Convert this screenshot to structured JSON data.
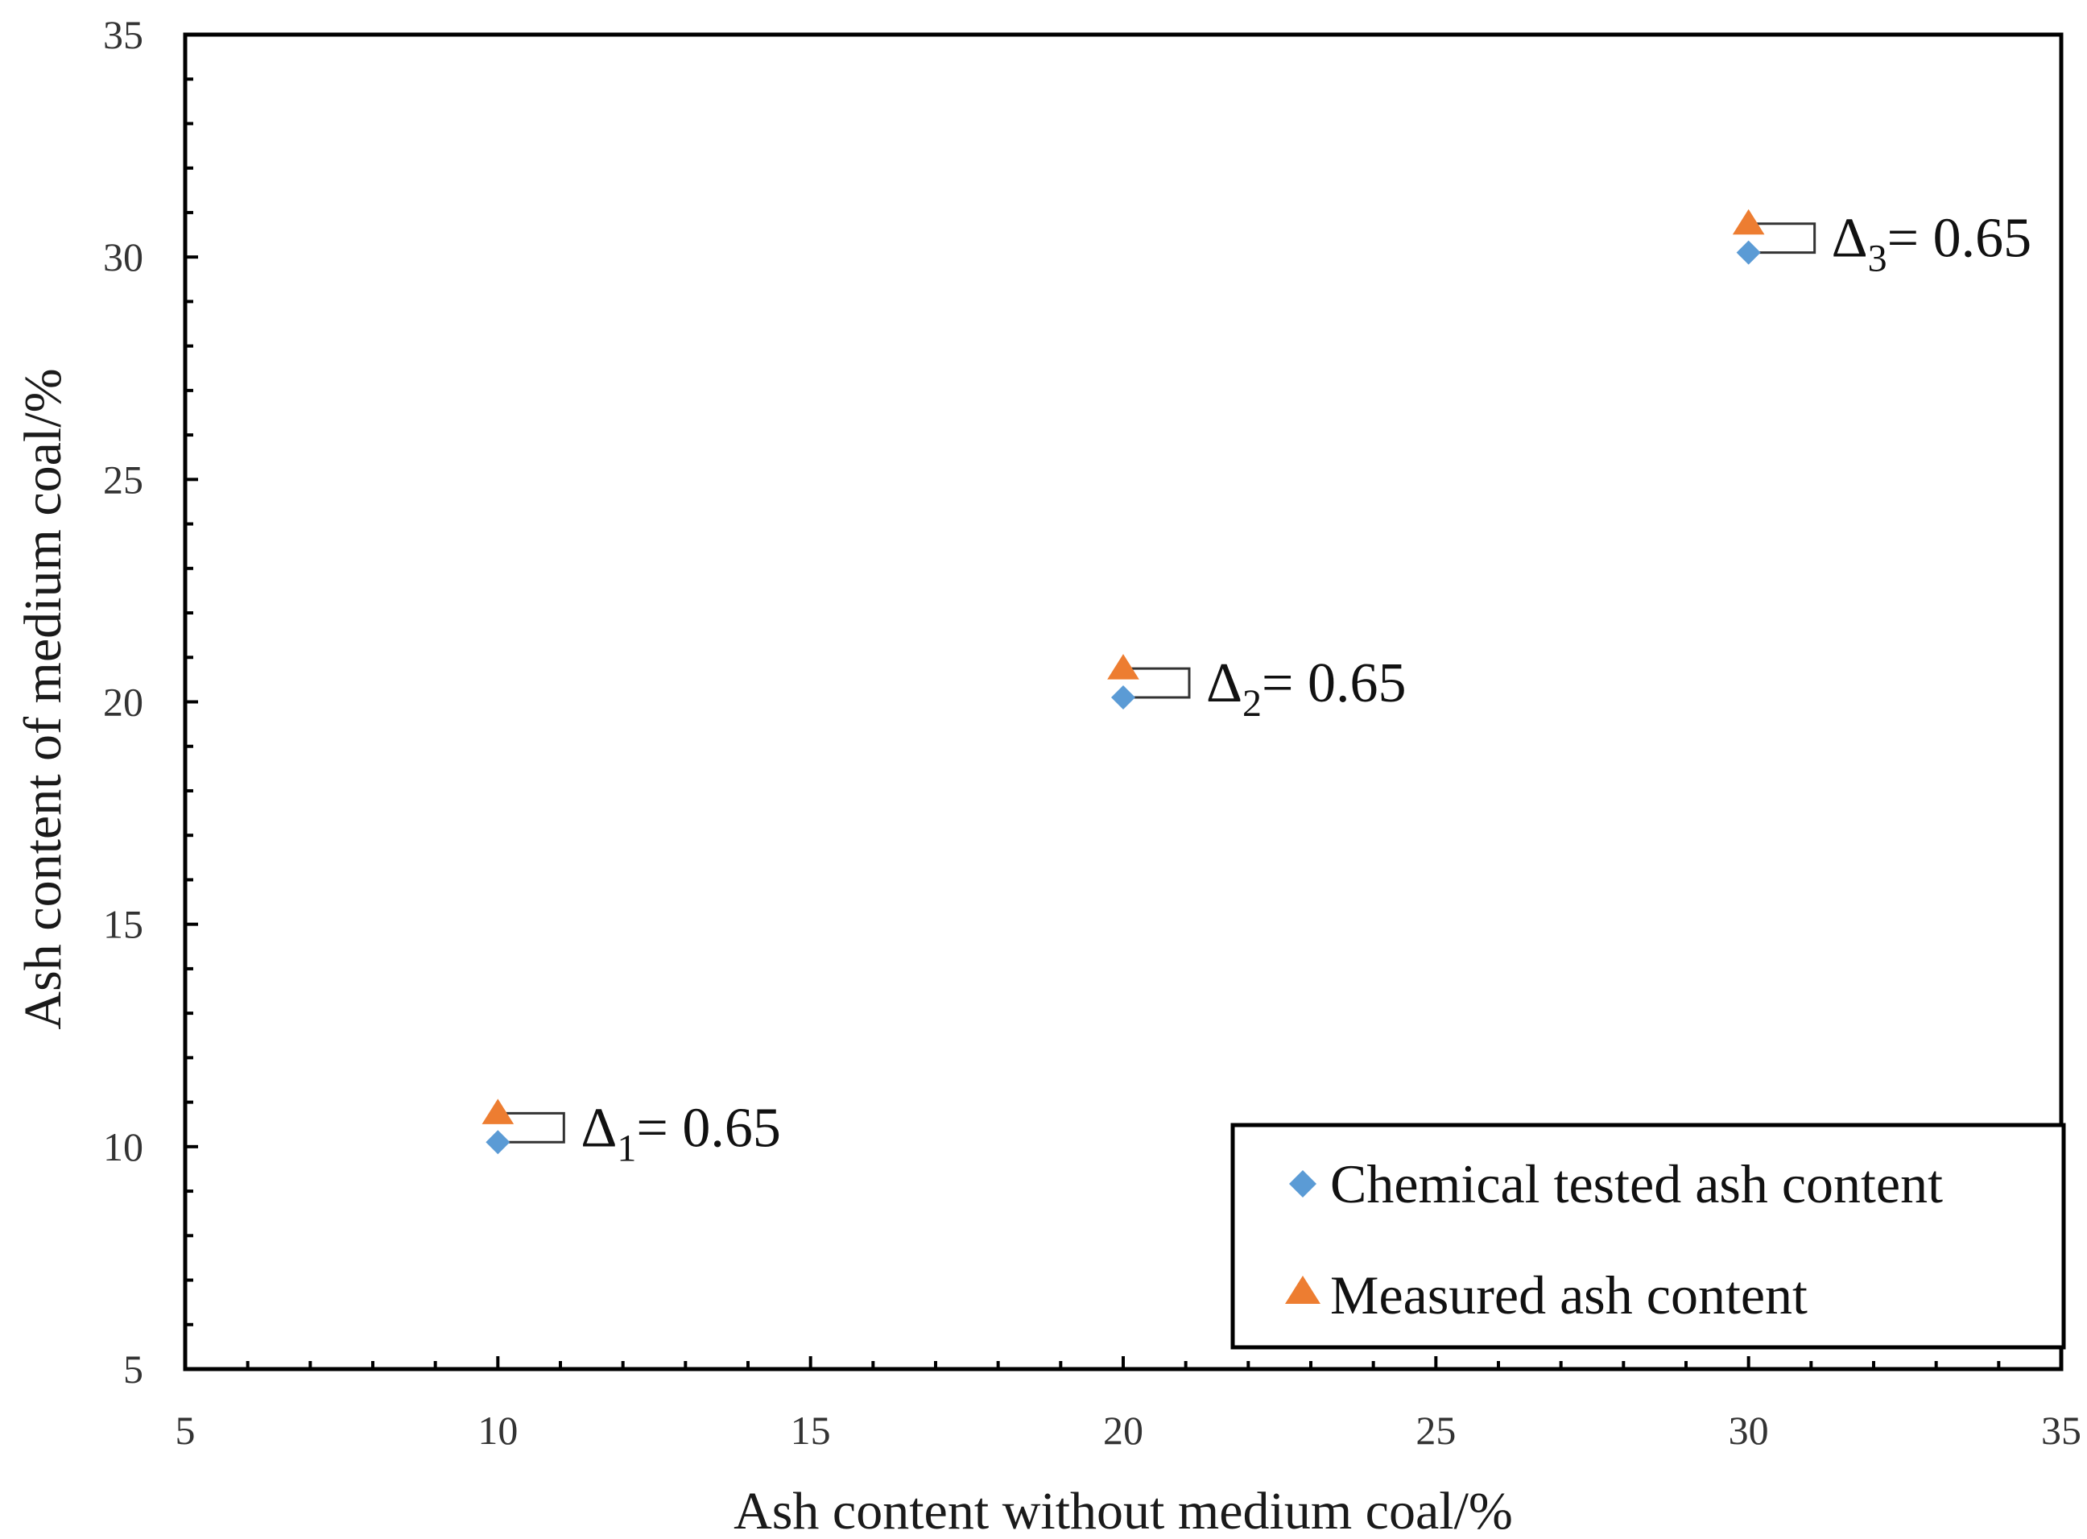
{
  "chart_data": {
    "type": "scatter",
    "title": "",
    "xlabel": "Ash content without medium coal/%",
    "ylabel": "Ash content of medium coal/%",
    "xlim": [
      5,
      35
    ],
    "ylim": [
      5,
      35
    ],
    "x_ticks": [
      5,
      10,
      15,
      20,
      25,
      30,
      35
    ],
    "y_ticks": [
      5,
      10,
      15,
      20,
      25,
      30,
      35
    ],
    "x_minor_step": 1,
    "y_minor_step": 1,
    "grid": false,
    "legend_position": "bottom-right",
    "series": [
      {
        "name": "Chemical tested ash content",
        "marker": "diamond",
        "color": "#5B9BD5",
        "points": [
          {
            "x": 10,
            "y": 10.1
          },
          {
            "x": 20,
            "y": 20.1
          },
          {
            "x": 30,
            "y": 30.1
          }
        ]
      },
      {
        "name": "Measured  ash content",
        "marker": "triangle",
        "color": "#ED7D31",
        "points": [
          {
            "x": 10,
            "y": 10.75
          },
          {
            "x": 20,
            "y": 20.75
          },
          {
            "x": 30,
            "y": 30.75
          }
        ]
      }
    ],
    "annotations": [
      {
        "symbol": "Δ",
        "subscript": "1",
        "text": "= 0.65",
        "x": 10,
        "y_low": 10.1,
        "y_high": 10.75
      },
      {
        "symbol": "Δ",
        "subscript": "2",
        "text": "= 0.65",
        "x": 20,
        "y_low": 20.1,
        "y_high": 20.75
      },
      {
        "symbol": "Δ",
        "subscript": "3",
        "text": "= 0.65",
        "x": 30,
        "y_low": 30.1,
        "y_high": 30.75
      }
    ]
  }
}
